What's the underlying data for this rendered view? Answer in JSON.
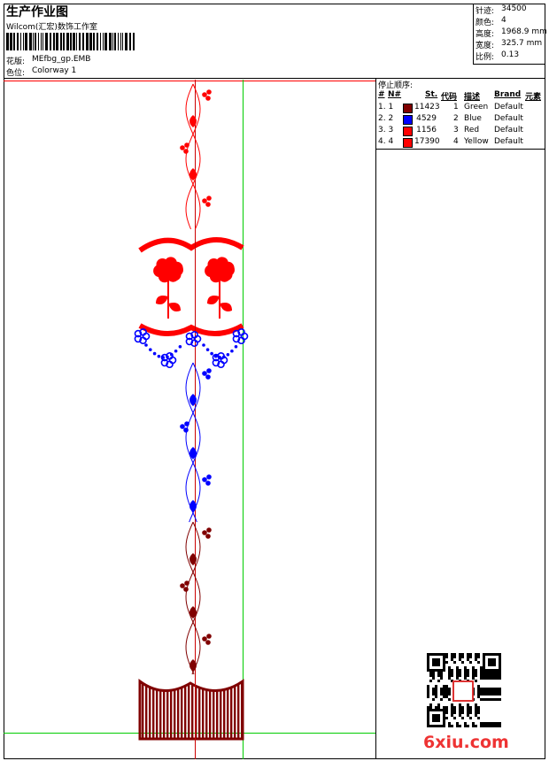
{
  "header": {
    "title": "生产作业图",
    "studio": "Wilcom(汇宏)数饰工作室",
    "design_label": "花版:",
    "design_file": "MEfbg_gp.EMB",
    "colorway_label": "色位:",
    "colorway": "Colorway 1"
  },
  "info": [
    {
      "label": "针迹:",
      "value": "34500"
    },
    {
      "label": "颜色:",
      "value": "4"
    },
    {
      "label": "高度:",
      "value": "1968.9 mm"
    },
    {
      "label": "宽度:",
      "value": "325.7 mm"
    },
    {
      "label": "比例:",
      "value": "0.13"
    }
  ],
  "table": {
    "title": "停止顺序:",
    "headers": [
      "#",
      "N#",
      "St.",
      "代码",
      "描述",
      "Brand",
      "元素"
    ],
    "rows": [
      {
        "index": "1. 1",
        "color": "#800000",
        "stitches": "11423",
        "code": "1",
        "description": "Green",
        "brand": "Default"
      },
      {
        "index": "2. 2",
        "color": "#0000ff",
        "stitches": "4529",
        "code": "2",
        "description": "Blue",
        "brand": "Default"
      },
      {
        "index": "3. 3",
        "color": "#ff0000",
        "stitches": "1156",
        "code": "3",
        "description": "Red",
        "brand": "Default"
      },
      {
        "index": "4. 4",
        "color": "#ff0000",
        "stitches": "17390",
        "code": "4",
        "description": "Yellow",
        "brand": "Default"
      }
    ]
  },
  "watermark": "6xiu.com"
}
